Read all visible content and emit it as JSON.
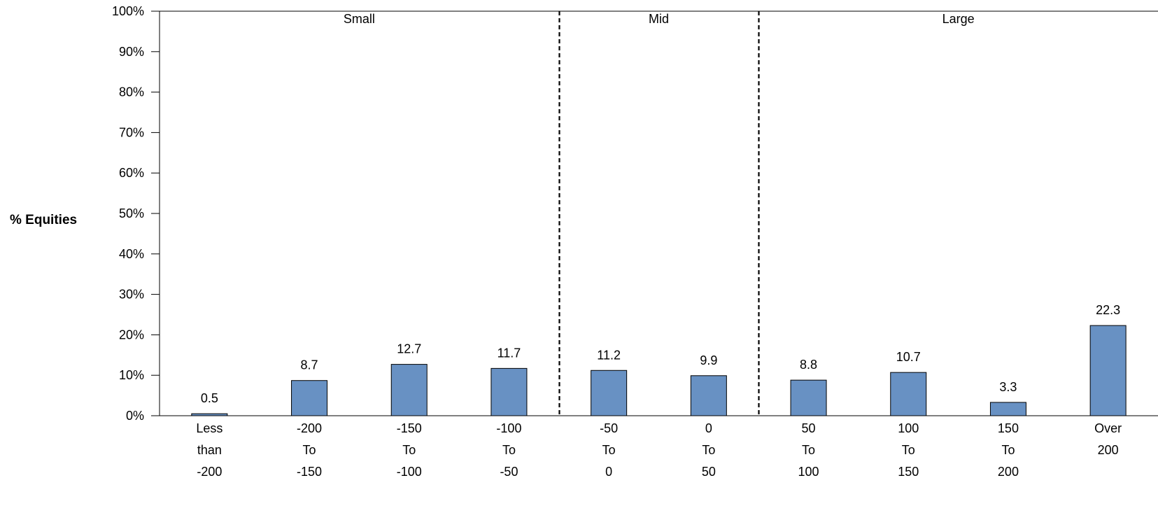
{
  "chart_data": {
    "type": "bar",
    "ylabel": "% Equities",
    "ylim": [
      0,
      100
    ],
    "yticks": [
      "0%",
      "10%",
      "20%",
      "30%",
      "40%",
      "50%",
      "60%",
      "70%",
      "80%",
      "90%",
      "100%"
    ],
    "categories": [
      [
        "Less",
        "than",
        "-200"
      ],
      [
        "-200",
        "To",
        "-150"
      ],
      [
        "-150",
        "To",
        "-100"
      ],
      [
        "-100",
        "To",
        "-50"
      ],
      [
        "-50",
        "To",
        "0"
      ],
      [
        "0",
        "To",
        "50"
      ],
      [
        "50",
        "To",
        "100"
      ],
      [
        "100",
        "To",
        "150"
      ],
      [
        "150",
        "To",
        "200"
      ],
      [
        "Over",
        "200"
      ]
    ],
    "values": [
      0.5,
      8.7,
      12.7,
      11.7,
      11.2,
      9.9,
      8.8,
      10.7,
      3.3,
      22.3
    ],
    "data_labels": [
      "0.5",
      "8.7",
      "12.7",
      "11.7",
      "11.2",
      "9.9",
      "8.8",
      "10.7",
      "3.3",
      "22.3"
    ],
    "groups": [
      {
        "label": "Small",
        "start": 0,
        "end": 3
      },
      {
        "label": "Mid",
        "start": 4,
        "end": 5
      },
      {
        "label": "Large",
        "start": 6,
        "end": 9
      }
    ],
    "bar_color": "#6891c3",
    "grid": false
  }
}
